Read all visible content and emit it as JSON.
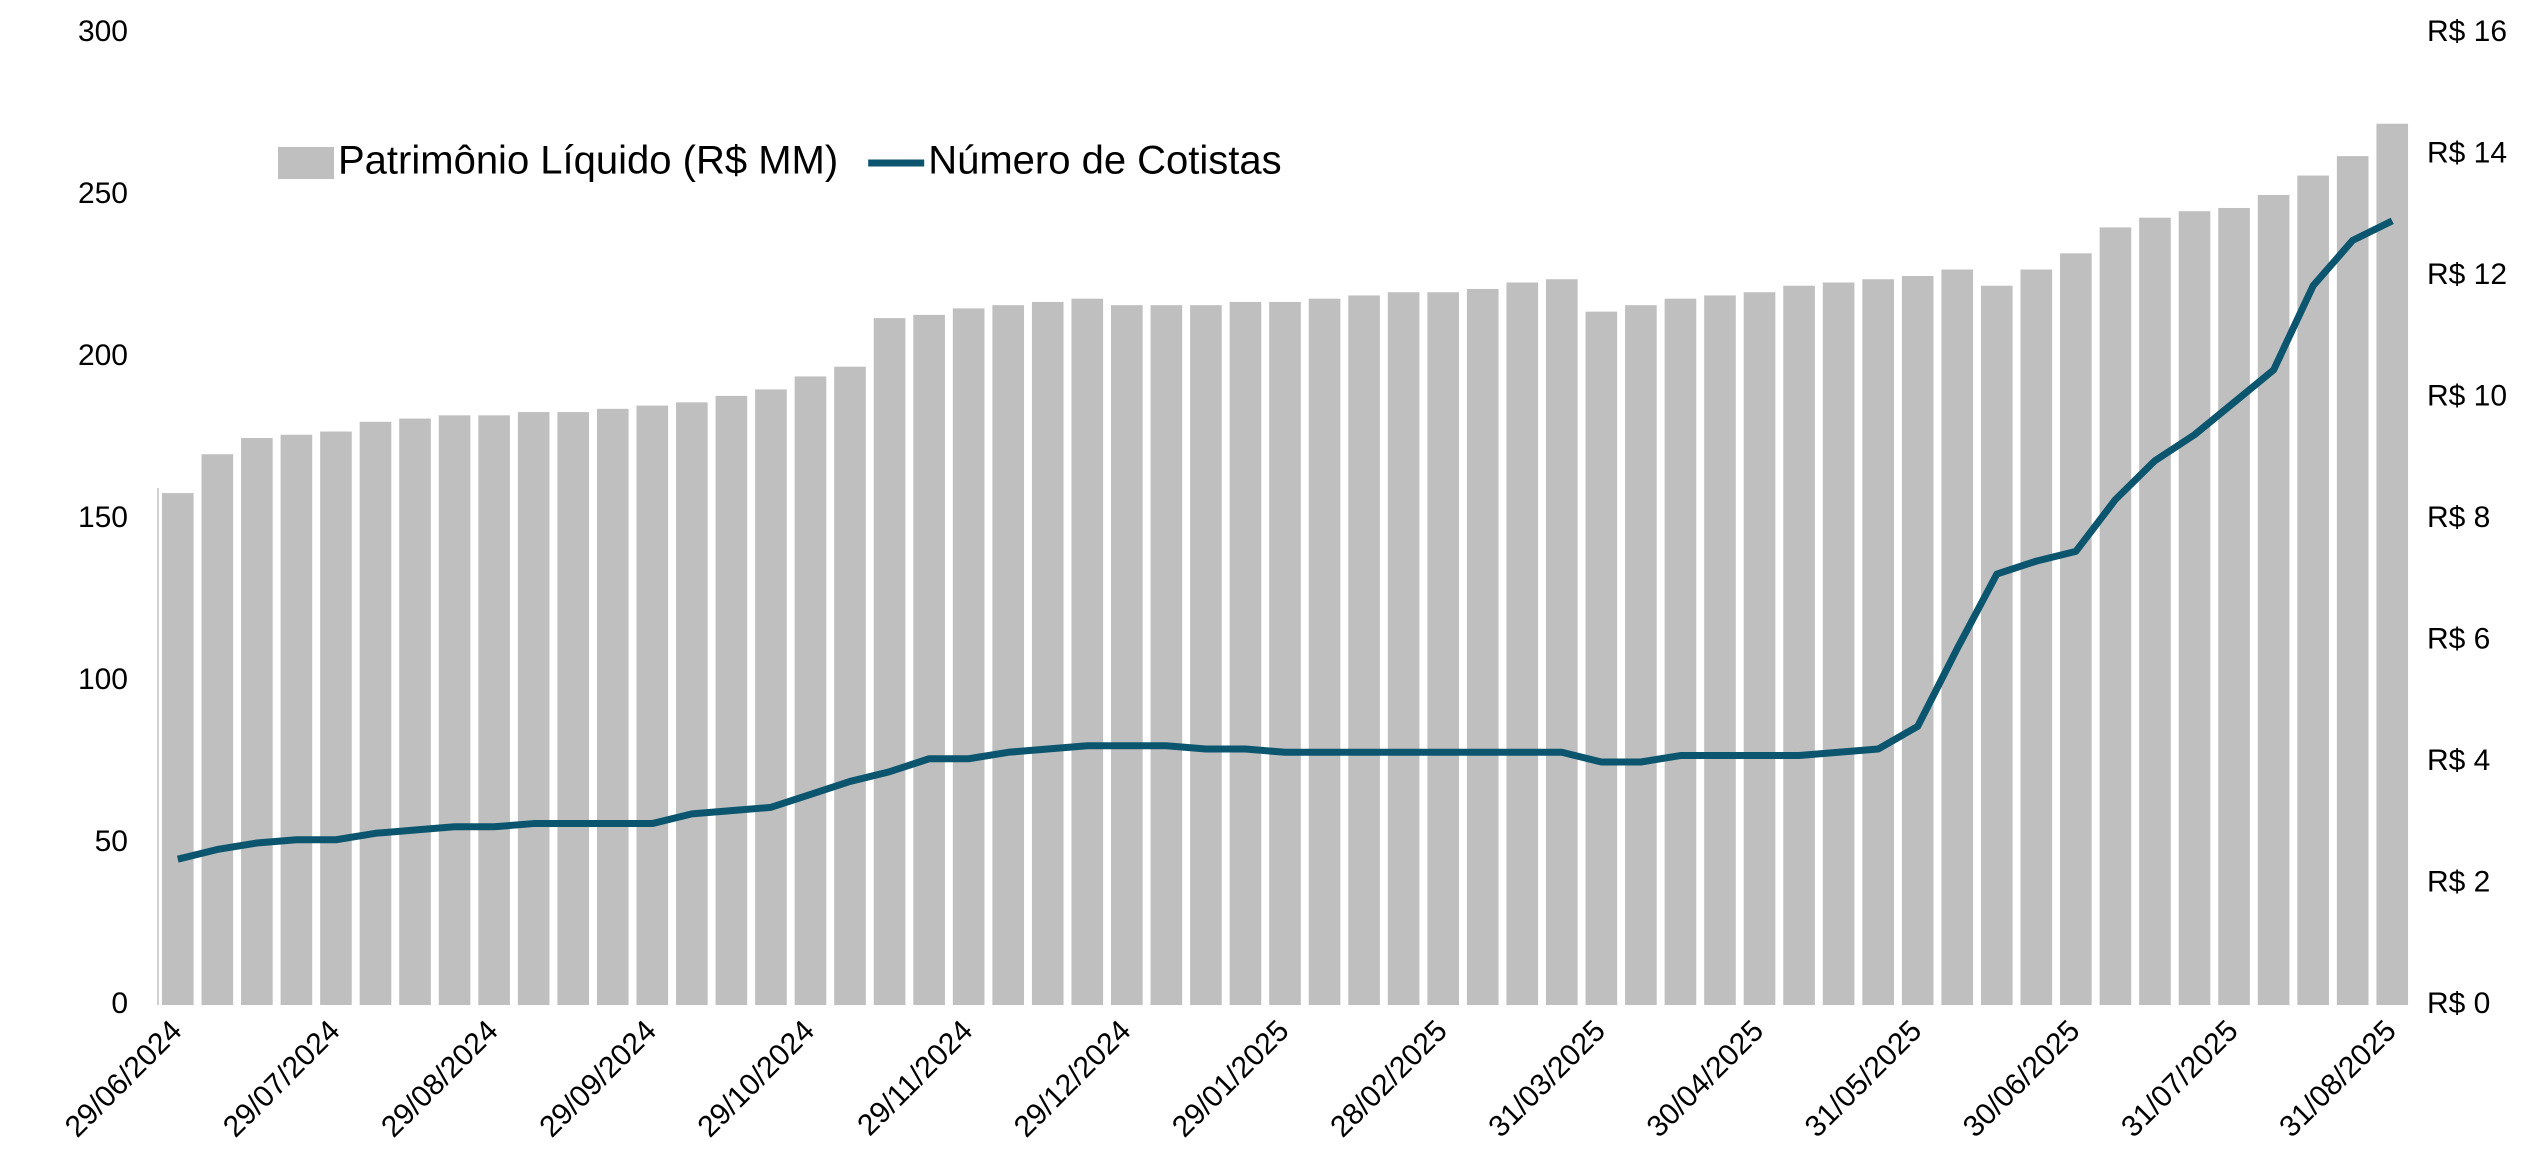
{
  "chart_data": {
    "type": "bar_line",
    "categories": [
      "29/06/2024",
      null,
      null,
      null,
      "29/07/2024",
      null,
      null,
      null,
      "29/08/2024",
      null,
      null,
      null,
      "29/09/2024",
      null,
      null,
      null,
      "29/10/2024",
      null,
      null,
      null,
      "29/11/2024",
      null,
      null,
      null,
      "29/12/2024",
      null,
      null,
      null,
      "29/01/2025",
      null,
      null,
      null,
      "28/02/2025",
      null,
      null,
      null,
      "31/03/2025",
      null,
      null,
      null,
      "30/04/2025",
      null,
      null,
      null,
      "31/05/2025",
      null,
      null,
      null,
      "30/06/2025",
      null,
      null,
      null,
      "31/07/2025",
      null,
      null,
      null,
      "31/08/2025"
    ],
    "series": [
      {
        "name": "Patrimônio Líquido (R$ MM)",
        "color": "#bfbfbf",
        "kind": "bar",
        "values": [
          158,
          170,
          175,
          176,
          177,
          180,
          181,
          182,
          182,
          183,
          183,
          184,
          185,
          186,
          188,
          190,
          194,
          197,
          212,
          213,
          215,
          216,
          217,
          218,
          216,
          216,
          216,
          217,
          217,
          218,
          219,
          220,
          220,
          221,
          223,
          224,
          214,
          216,
          218,
          219,
          220,
          222,
          223,
          224,
          225,
          227,
          222,
          227,
          232,
          240,
          243,
          245,
          246,
          250,
          256,
          262,
          272
        ]
      },
      {
        "name": "Número de Cotistas",
        "color": "#0b566e",
        "kind": "line",
        "values": [
          45,
          48,
          50,
          51,
          51,
          53,
          54,
          55,
          55,
          56,
          56,
          56,
          56,
          59,
          60,
          61,
          65,
          69,
          72,
          76,
          76,
          78,
          79,
          80,
          80,
          80,
          79,
          79,
          78,
          78,
          78,
          78,
          78,
          78,
          78,
          78,
          75,
          75,
          77,
          77,
          77,
          77,
          78,
          79,
          86,
          110,
          133,
          137,
          140,
          156,
          168,
          176,
          186,
          196,
          222,
          236,
          242
        ]
      }
    ],
    "ylim": [
      0,
      300
    ],
    "yticks": [
      0,
      50,
      100,
      150,
      200,
      250,
      300
    ],
    "y2lim": [
      0,
      16
    ],
    "y2ticks": [
      {
        "value": 0,
        "label": "R$ 0"
      },
      {
        "value": 2,
        "label": "R$ 2"
      },
      {
        "value": 4,
        "label": "R$ 4"
      },
      {
        "value": 6,
        "label": "R$ 6"
      },
      {
        "value": 8,
        "label": "R$ 8"
      },
      {
        "value": 10,
        "label": "R$ 10"
      },
      {
        "value": 12,
        "label": "R$ 12"
      },
      {
        "value": 14,
        "label": "R$ 14"
      },
      {
        "value": 16,
        "label": "R$ 16"
      }
    ],
    "legend": "top-left"
  }
}
